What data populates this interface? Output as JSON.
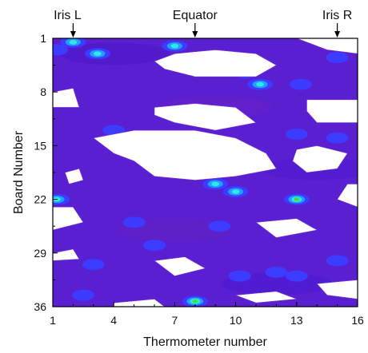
{
  "chart_data": {
    "type": "heatmap",
    "xlabel": "Thermometer number",
    "ylabel": "Board Number",
    "x_ticks": [
      1,
      4,
      7,
      10,
      13,
      16
    ],
    "y_ticks": [
      1,
      8,
      15,
      22,
      29,
      36
    ],
    "xlim": [
      1,
      16
    ],
    "ylim": [
      1,
      36
    ],
    "y_axis_inverted": true,
    "annotations": [
      {
        "label": "Iris L",
        "x": 2
      },
      {
        "label": "Equator",
        "x": 8
      },
      {
        "label": "Iris R",
        "x": 15
      }
    ],
    "blobs": [
      {
        "x": 2,
        "y": 1.5,
        "level": "cyan"
      },
      {
        "x": 3.2,
        "y": 3,
        "level": "cyan"
      },
      {
        "x": 7,
        "y": 2,
        "level": "cyan"
      },
      {
        "x": 1.2,
        "y": 2.5,
        "level": "blue"
      },
      {
        "x": 10.5,
        "y": 5.5,
        "level": "blue"
      },
      {
        "x": 11.2,
        "y": 7,
        "level": "cyan"
      },
      {
        "x": 13.2,
        "y": 7,
        "level": "blue"
      },
      {
        "x": 15,
        "y": 3.5,
        "level": "blue"
      },
      {
        "x": 4,
        "y": 13,
        "level": "blue"
      },
      {
        "x": 7,
        "y": 15,
        "level": "cyan"
      },
      {
        "x": 6.2,
        "y": 14,
        "level": "blue"
      },
      {
        "x": 13,
        "y": 13.5,
        "level": "blue"
      },
      {
        "x": 15,
        "y": 14,
        "level": "blue"
      },
      {
        "x": 9,
        "y": 20,
        "level": "cyan"
      },
      {
        "x": 10,
        "y": 21,
        "level": "cyan"
      },
      {
        "x": 13,
        "y": 22,
        "level": "green"
      },
      {
        "x": 1.2,
        "y": 22,
        "level": "cyan"
      },
      {
        "x": 5,
        "y": 25,
        "level": "blue"
      },
      {
        "x": 9.2,
        "y": 25.5,
        "level": "blue"
      },
      {
        "x": 3,
        "y": 30.5,
        "level": "blue"
      },
      {
        "x": 10.2,
        "y": 32,
        "level": "blue"
      },
      {
        "x": 13,
        "y": 32,
        "level": "blue"
      },
      {
        "x": 15,
        "y": 30,
        "level": "blue"
      },
      {
        "x": 8,
        "y": 35.3,
        "level": "green"
      },
      {
        "x": 2.5,
        "y": 34.5,
        "level": "blue"
      },
      {
        "x": 12,
        "y": 31.5,
        "level": "blue"
      },
      {
        "x": 6,
        "y": 28,
        "level": "blue"
      }
    ],
    "white_regions": [
      {
        "points": [
          [
            6,
            4
          ],
          [
            7,
            3
          ],
          [
            9,
            2.5
          ],
          [
            11,
            3
          ],
          [
            12,
            4.5
          ],
          [
            11,
            6
          ],
          [
            8,
            6
          ],
          [
            6.5,
            5
          ]
        ]
      },
      {
        "points": [
          [
            13,
            1
          ],
          [
            16,
            1
          ],
          [
            16,
            3
          ],
          [
            14.5,
            2.5
          ]
        ]
      },
      {
        "points": [
          [
            1,
            8
          ],
          [
            2,
            7.5
          ],
          [
            2.3,
            10
          ],
          [
            1,
            10
          ]
        ]
      },
      {
        "points": [
          [
            6,
            10
          ],
          [
            8,
            9.5
          ],
          [
            10,
            10
          ],
          [
            11,
            12
          ],
          [
            9,
            13
          ],
          [
            7,
            12
          ],
          [
            6,
            11
          ]
        ]
      },
      {
        "points": [
          [
            13.5,
            9
          ],
          [
            16,
            9
          ],
          [
            16,
            12
          ],
          [
            14,
            12
          ],
          [
            13.5,
            10.5
          ]
        ]
      },
      {
        "points": [
          [
            3,
            14
          ],
          [
            5,
            13
          ],
          [
            8,
            13
          ],
          [
            10,
            14
          ],
          [
            11.5,
            16
          ],
          [
            12,
            18
          ],
          [
            10,
            19
          ],
          [
            8,
            19.5
          ],
          [
            6,
            19
          ],
          [
            5,
            17
          ],
          [
            4,
            16
          ]
        ]
      },
      {
        "points": [
          [
            13,
            15.5
          ],
          [
            14,
            15
          ],
          [
            15.5,
            16
          ],
          [
            15,
            18
          ],
          [
            13.5,
            18.5
          ],
          [
            12.8,
            17
          ]
        ]
      },
      {
        "points": [
          [
            1.6,
            18.5
          ],
          [
            2.3,
            18
          ],
          [
            2.5,
            19.5
          ],
          [
            1.8,
            20
          ]
        ]
      },
      {
        "points": [
          [
            15.5,
            20
          ],
          [
            16,
            20
          ],
          [
            16,
            23
          ],
          [
            15,
            22
          ]
        ]
      },
      {
        "points": [
          [
            1,
            23
          ],
          [
            2,
            23
          ],
          [
            2.5,
            25
          ],
          [
            1,
            26
          ]
        ]
      },
      {
        "points": [
          [
            11,
            25
          ],
          [
            13,
            24.5
          ],
          [
            14,
            26
          ],
          [
            12,
            27
          ]
        ]
      },
      {
        "points": [
          [
            6,
            30
          ],
          [
            7.5,
            29.5
          ],
          [
            8.5,
            31
          ],
          [
            7,
            32
          ]
        ]
      },
      {
        "points": [
          [
            1,
            29
          ],
          [
            2,
            28.5
          ],
          [
            2.3,
            29.8
          ],
          [
            1,
            30
          ]
        ]
      },
      {
        "points": [
          [
            14,
            33
          ],
          [
            16,
            32.5
          ],
          [
            16,
            35
          ],
          [
            14.5,
            34.5
          ]
        ]
      },
      {
        "points": [
          [
            4,
            35.5
          ],
          [
            6,
            35
          ],
          [
            6.5,
            36
          ],
          [
            4,
            36
          ]
        ]
      },
      {
        "points": [
          [
            10,
            34.5
          ],
          [
            12,
            34
          ],
          [
            13,
            35
          ],
          [
            11,
            35.5
          ]
        ]
      }
    ]
  }
}
